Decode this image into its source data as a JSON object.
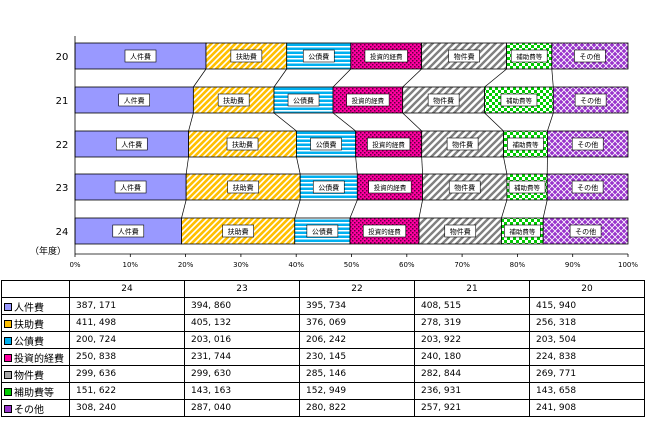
{
  "chart_data": {
    "type": "bar",
    "orientation": "horizontal",
    "stacked": "percent",
    "categories": [
      "20",
      "21",
      "22",
      "23",
      "24"
    ],
    "category_axis_label": "（年度）",
    "x_ticks": [
      "0%",
      "10%",
      "20%",
      "30%",
      "40%",
      "50%",
      "60%",
      "70%",
      "80%",
      "90%",
      "100%"
    ],
    "xlim": [
      0,
      100
    ],
    "series": [
      {
        "name": "人件費",
        "values": [
          415940,
          408515,
          395734,
          394860,
          387171
        ]
      },
      {
        "name": "扶助費",
        "values": [
          256318,
          278319,
          376069,
          405132,
          411498
        ]
      },
      {
        "name": "公債費",
        "values": [
          203504,
          203922,
          206242,
          203016,
          200724
        ]
      },
      {
        "name": "投資的経費",
        "values": [
          224838,
          240180,
          230145,
          231744,
          250838
        ]
      },
      {
        "name": "物件費",
        "values": [
          269771,
          282844,
          285146,
          299630,
          299636
        ]
      },
      {
        "name": "補助費等",
        "values": [
          143658,
          236931,
          152949,
          143163,
          151622
        ]
      },
      {
        "name": "その他",
        "values": [
          241908,
          257921,
          280822,
          287040,
          308240
        ]
      }
    ],
    "colors": [
      "#9999ff",
      "#ffc000",
      "#00b0f0",
      "#ff00a0",
      "#a6a6a6",
      "#00cc00",
      "#9933cc"
    ]
  },
  "table": {
    "headers": [
      "24",
      "23",
      "22",
      "21",
      "20"
    ],
    "rows": [
      {
        "label": "人件費",
        "values": [
          "387, 171",
          "394, 860",
          "395, 734",
          "408, 515",
          "415, 940"
        ]
      },
      {
        "label": "扶助費",
        "values": [
          "411, 498",
          "405, 132",
          "376, 069",
          "278, 319",
          "256, 318"
        ]
      },
      {
        "label": "公債費",
        "values": [
          "200, 724",
          "203, 016",
          "206, 242",
          "203, 922",
          "203, 504"
        ]
      },
      {
        "label": "投資的経費",
        "values": [
          "250, 838",
          "231, 744",
          "230, 145",
          "240, 180",
          "224, 838"
        ]
      },
      {
        "label": "物件費",
        "values": [
          "299, 636",
          "299, 630",
          "285, 146",
          "282, 844",
          "269, 771"
        ]
      },
      {
        "label": "補助費等",
        "values": [
          "151, 622",
          "143, 163",
          "152, 949",
          "236, 931",
          "143, 658"
        ]
      },
      {
        "label": "その他",
        "values": [
          "308, 240",
          "287, 040",
          "280, 822",
          "257, 921",
          "241, 908"
        ]
      }
    ]
  }
}
